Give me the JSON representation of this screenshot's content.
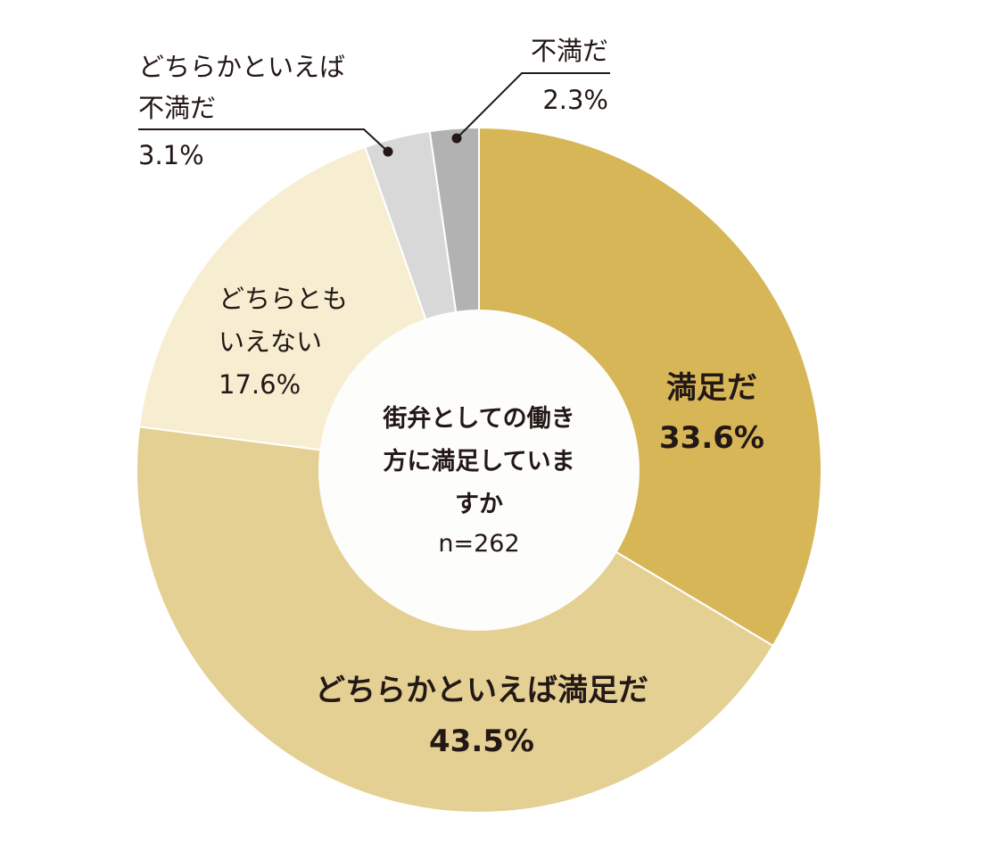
{
  "chart_data": {
    "type": "donut",
    "title": "街弁としての働き方に満足していますか",
    "center_title_lines": [
      "街弁としての働き",
      "方に満足していま",
      "すか"
    ],
    "n_label": "n=262",
    "unit": "%",
    "slices": [
      {
        "name": "満足だ",
        "name_lines": [
          "満足だ"
        ],
        "value": 33.6,
        "value_label": "33.6%",
        "color": "#d7b657"
      },
      {
        "name": "どちらかといえば満足だ",
        "name_lines": [
          "どちらかといえば満足だ"
        ],
        "value": 43.5,
        "value_label": "43.5%",
        "color": "#e4d093"
      },
      {
        "name": "どちらともいえない",
        "name_lines": [
          "どちらとも",
          "いえない"
        ],
        "value": 17.6,
        "value_label": "17.6%",
        "color": "#f7edd1"
      },
      {
        "name": "どちらかといえば不満だ",
        "name_lines": [
          "どちらかといえば",
          "不満だ"
        ],
        "value": 3.1,
        "value_label": "3.1%",
        "color": "#d8d8d8"
      },
      {
        "name": "不満だ",
        "name_lines": [
          "不満だ"
        ],
        "value": 2.3,
        "value_label": "2.3%",
        "color": "#b2b2b2"
      }
    ],
    "center_fill": "#fdfdfb",
    "leader_line_color": "#231815",
    "text_color": "#231815"
  }
}
